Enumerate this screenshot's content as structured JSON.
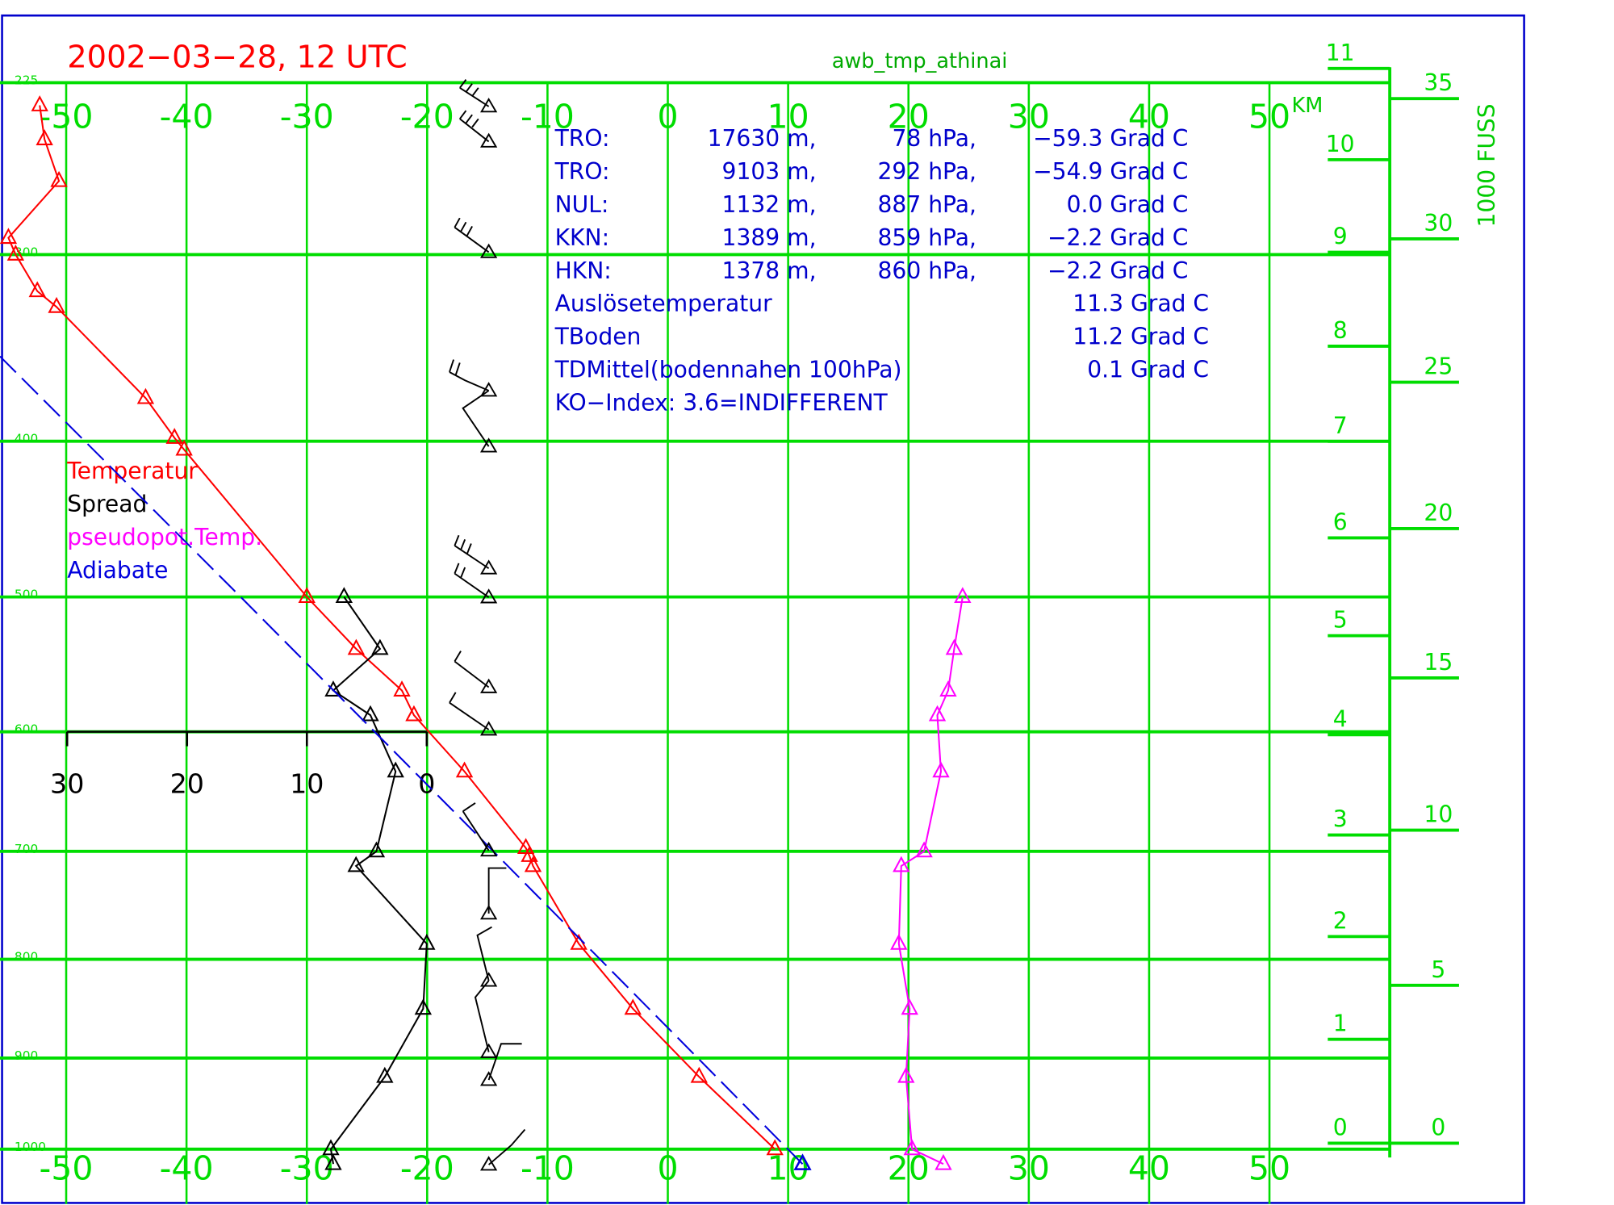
{
  "chart_data": {
    "type": "sounding",
    "title": "2002−03−28, 12 UTC",
    "subtitle": "awb_tmp_athinai",
    "xlim": [
      -55.5,
      60
    ],
    "xticks": [
      -50,
      -40,
      -30,
      -20,
      -10,
      0,
      10,
      20,
      30,
      40,
      50
    ],
    "ylim": [
      1000,
      225
    ],
    "yticks": [
      225,
      300,
      400,
      500,
      600,
      700,
      800,
      900,
      1000
    ],
    "spread_xlim": [
      30,
      0
    ],
    "spread_ticks": [
      30,
      20,
      10,
      0
    ],
    "km_label": "KM",
    "km_ticks": [
      0,
      1,
      2,
      3,
      4,
      5,
      6,
      7,
      8,
      9,
      10,
      11
    ],
    "kft_label": "1000 FUSS",
    "kft_ticks": [
      0,
      5,
      10,
      15,
      20,
      25,
      30,
      35
    ],
    "grid": true,
    "grid_color": "#00dd00",
    "legend": "left",
    "series": [
      {
        "name": "Temperatur",
        "color": "#ff0000",
        "pressure": [
          234,
          248,
          266,
          292,
          300,
          318,
          326,
          375,
          398,
          405,
          500,
          537,
          568,
          587,
          632,
          697,
          704,
          713,
          785,
          849,
          920,
          1000
        ],
        "values": [
          -52.2,
          -51.8,
          -50.6,
          -54.8,
          -54.2,
          -52.4,
          -50.8,
          -43.4,
          -41.0,
          -40.2,
          -30.0,
          -25.9,
          -22.1,
          -21.1,
          -16.9,
          -11.8,
          -11.5,
          -11.2,
          -7.4,
          -2.9,
          2.6,
          8.9
        ]
      },
      {
        "name": "Spread",
        "color": "#000000",
        "axis": "spread",
        "pressure": [
          500,
          537,
          568,
          587,
          632,
          700,
          713,
          785,
          849,
          920,
          1000,
          1017
        ],
        "values": [
          6.9,
          3.9,
          7.8,
          4.7,
          2.6,
          4.2,
          5.9,
          0.0,
          0.3,
          3.5,
          8.0,
          7.8
        ]
      },
      {
        "name": "pseudopot.Temp.",
        "color": "#ff00ff",
        "pressure": [
          500,
          537,
          568,
          587,
          632,
          700,
          713,
          785,
          849,
          920,
          1000,
          1017
        ],
        "values": [
          24.5,
          23.8,
          23.3,
          22.4,
          22.7,
          21.3,
          19.4,
          19.2,
          20.1,
          19.8,
          20.3,
          22.9
        ]
      },
      {
        "name": "Adiabate",
        "color": "#0000dd",
        "dashed": true,
        "pressure": [
          1017,
          700,
          500,
          352
        ],
        "values": [
          11.2,
          -14.5,
          -35.5,
          -55.5
        ]
      }
    ],
    "annotations": [
      [
        "TRO:",
        "17630 m,",
        "78 hPa,",
        "−59.3 Grad C"
      ],
      [
        "TRO:",
        "9103 m,",
        "292 hPa,",
        "−54.9 Grad C"
      ],
      [
        "NUL:",
        "1132 m,",
        "887 hPa,",
        "0.0 Grad C"
      ],
      [
        "KKN:",
        "1389 m,",
        "859 hPa,",
        "−2.2 Grad C"
      ],
      [
        "HKN:",
        "1378 m,",
        "860 hPa,",
        "−2.2 Grad C"
      ],
      [
        "Auslösetemperatur",
        "11.3 Grad C"
      ],
      [
        "TBoden",
        "11.2 Grad C"
      ],
      [
        "TDMittel(bodennahen 100hPa)",
        "0.1 Grad C"
      ],
      [
        "KO−Index:   3.6=INDIFFERENT"
      ]
    ]
  }
}
